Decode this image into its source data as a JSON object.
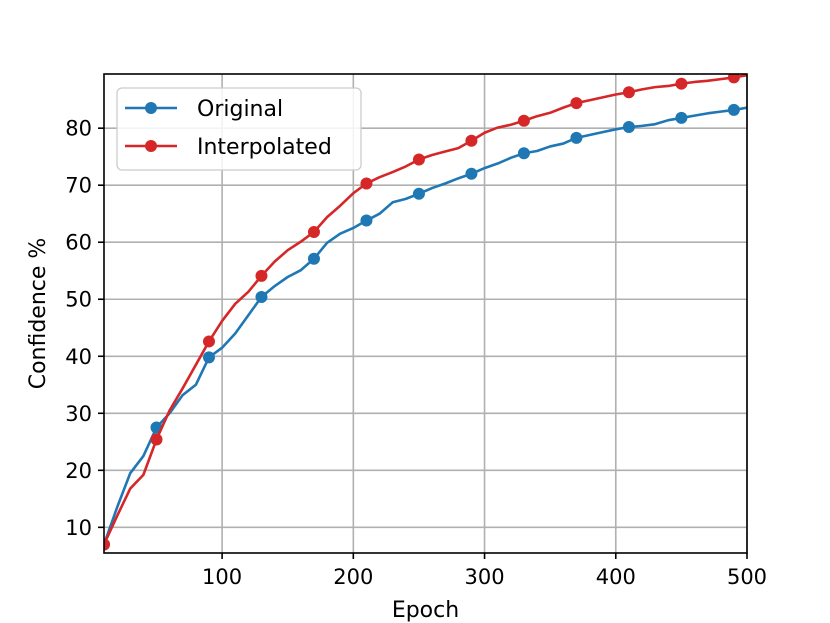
{
  "chart_data": {
    "type": "line",
    "xlabel": "Epoch",
    "ylabel": "Confidence %",
    "xlim": [
      10,
      500
    ],
    "ylim": [
      5.5,
      89.5
    ],
    "xticks": [
      100,
      200,
      300,
      400,
      500
    ],
    "yticks": [
      10,
      20,
      30,
      40,
      50,
      60,
      70,
      80
    ],
    "grid": true,
    "legend_position": "top-left",
    "series": [
      {
        "name": "Original",
        "color": "#1f77b4",
        "x": [
          10,
          20,
          30,
          40,
          50,
          60,
          70,
          80,
          90,
          100,
          110,
          120,
          130,
          140,
          150,
          160,
          170,
          180,
          190,
          200,
          210,
          220,
          230,
          240,
          250,
          260,
          270,
          280,
          290,
          300,
          310,
          320,
          330,
          340,
          350,
          360,
          370,
          380,
          390,
          400,
          410,
          420,
          430,
          440,
          450,
          460,
          470,
          480,
          490,
          500
        ],
        "y": [
          7.0,
          13.5,
          19.5,
          22.5,
          27.5,
          30.0,
          33.2,
          35.0,
          39.8,
          41.5,
          44.0,
          47.2,
          50.4,
          52.3,
          53.9,
          55.1,
          57.1,
          59.9,
          61.5,
          62.5,
          63.8,
          65.0,
          67.0,
          67.6,
          68.5,
          69.5,
          70.3,
          71.2,
          72.0,
          73.0,
          73.8,
          74.8,
          75.6,
          76.0,
          76.8,
          77.3,
          78.3,
          78.8,
          79.3,
          79.8,
          80.2,
          80.4,
          80.7,
          81.4,
          81.8,
          82.2,
          82.6,
          82.9,
          83.2,
          83.6
        ],
        "markers_x": [
          10,
          50,
          90,
          130,
          170,
          210,
          250,
          290,
          330,
          370,
          410,
          450,
          490
        ]
      },
      {
        "name": "Interpolated",
        "color": "#d62728",
        "x": [
          10,
          20,
          30,
          40,
          50,
          60,
          70,
          80,
          90,
          100,
          110,
          120,
          130,
          140,
          150,
          160,
          170,
          180,
          190,
          200,
          210,
          220,
          230,
          240,
          250,
          260,
          270,
          280,
          290,
          300,
          310,
          320,
          330,
          340,
          350,
          360,
          370,
          380,
          390,
          400,
          410,
          420,
          430,
          440,
          450,
          460,
          470,
          480,
          490,
          500
        ],
        "y": [
          7.0,
          12.0,
          16.8,
          19.2,
          25.4,
          30.5,
          34.4,
          38.5,
          42.6,
          46.2,
          49.2,
          51.3,
          54.1,
          56.6,
          58.6,
          60.1,
          61.8,
          64.4,
          66.4,
          68.6,
          70.3,
          71.4,
          72.3,
          73.3,
          74.5,
          75.3,
          75.9,
          76.5,
          77.8,
          79.2,
          80.1,
          80.6,
          81.3,
          82.1,
          82.7,
          83.6,
          84.4,
          84.9,
          85.4,
          85.9,
          86.3,
          86.8,
          87.2,
          87.4,
          87.8,
          88.1,
          88.3,
          88.6,
          88.9,
          89.3
        ],
        "markers_x": [
          10,
          50,
          90,
          130,
          170,
          210,
          250,
          290,
          330,
          370,
          410,
          450,
          490
        ]
      }
    ]
  }
}
